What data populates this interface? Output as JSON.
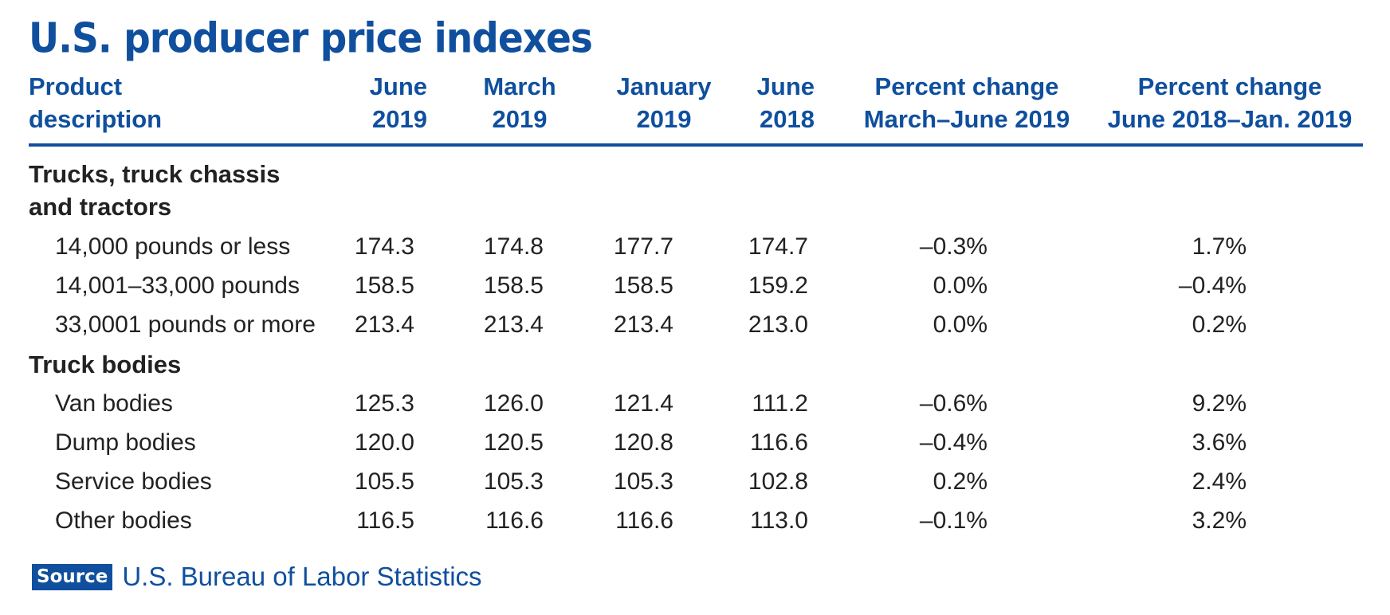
{
  "chart_data": {
    "type": "table",
    "title": "U.S. producer price indexes",
    "columns": [
      [
        "Product",
        "description"
      ],
      [
        "June",
        "2019"
      ],
      [
        "March",
        "2019"
      ],
      [
        "January",
        "2019"
      ],
      [
        "June",
        "2018"
      ],
      [
        "Percent change",
        "March–June 2019"
      ],
      [
        "Percent change",
        "June 2018–Jan. 2019"
      ]
    ],
    "groups": [
      {
        "label": [
          "Trucks, truck chassis",
          "and tractors"
        ],
        "rows": [
          {
            "product": "14,000 pounds or less",
            "values": [
              "174.3",
              "174.8",
              "177.7",
              "174.7",
              "–0.3%",
              "1.7%"
            ]
          },
          {
            "product": "14,001–33,000 pounds",
            "values": [
              "158.5",
              "158.5",
              "158.5",
              "159.2",
              "0.0%",
              "–0.4%"
            ]
          },
          {
            "product": "33,0001 pounds or more",
            "values": [
              "213.4",
              "213.4",
              "213.4",
              "213.0",
              "0.0%",
              "0.2%"
            ]
          }
        ]
      },
      {
        "label": [
          "Truck bodies"
        ],
        "rows": [
          {
            "product": "Van bodies",
            "values": [
              "125.3",
              "126.0",
              "121.4",
              "111.2",
              "–0.6%",
              "9.2%"
            ]
          },
          {
            "product": "Dump bodies",
            "values": [
              "120.0",
              "120.5",
              "120.8",
              "116.6",
              "–0.4%",
              "3.6%"
            ]
          },
          {
            "product": "Service bodies",
            "values": [
              "105.5",
              "105.3",
              "105.3",
              "102.8",
              "0.2%",
              "2.4%"
            ]
          },
          {
            "product": "Other bodies",
            "values": [
              "116.5",
              "116.6",
              "116.6",
              "113.0",
              "–0.1%",
              "3.2%"
            ]
          }
        ]
      }
    ]
  },
  "source": {
    "badge": "Source",
    "text": "U.S. Bureau of Labor Statistics"
  },
  "colors": {
    "accent": "#0f4f9e",
    "text": "#222222"
  }
}
